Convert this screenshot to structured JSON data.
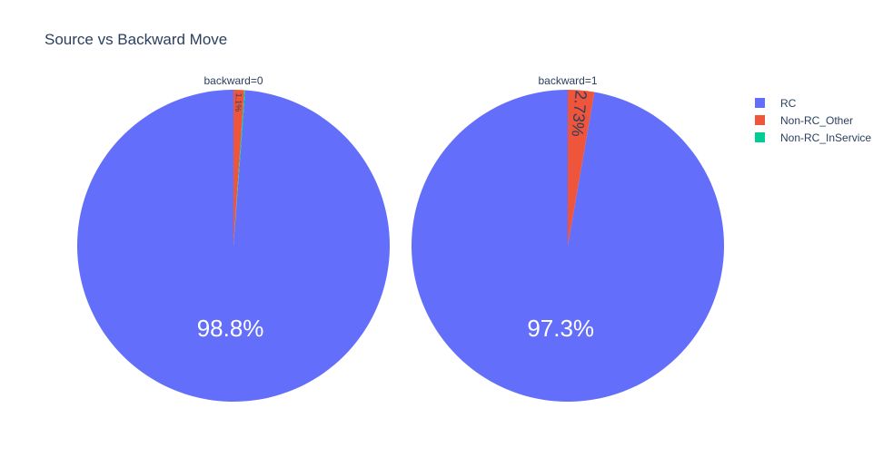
{
  "chart_data": {
    "type": "pie",
    "title": "Source vs Backward Move",
    "legend": {
      "placement": "top-right",
      "entries": [
        {
          "name": "RC",
          "color": "#636efa"
        },
        {
          "name": "Non-RC_Other",
          "color": "#ef553b"
        },
        {
          "name": "Non-RC_InService",
          "color": "#00cc96"
        }
      ]
    },
    "pies": [
      {
        "label": "backward=0",
        "slices": [
          {
            "name": "RC",
            "value": 98.8,
            "text": "98.8%",
            "color": "#636efa"
          },
          {
            "name": "Non-RC_Other",
            "value": 1.1,
            "text": "1.1%",
            "color": "#ef553b"
          },
          {
            "name": "Non-RC_InService",
            "value": 0.1,
            "text": "",
            "color": "#00cc96"
          }
        ]
      },
      {
        "label": "backward=1",
        "slices": [
          {
            "name": "RC",
            "value": 97.3,
            "text": "97.3%",
            "color": "#636efa"
          },
          {
            "name": "Non-RC_Other",
            "value": 2.73,
            "text": "2.73%",
            "color": "#ef553b"
          },
          {
            "name": "Non-RC_InService",
            "value": 0.0,
            "text": "",
            "color": "#00cc96"
          }
        ]
      }
    ]
  }
}
